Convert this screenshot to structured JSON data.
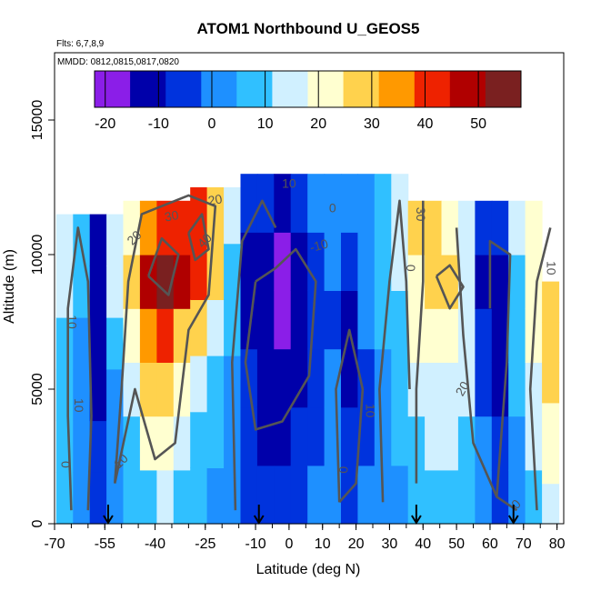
{
  "chart_data": {
    "type": "heatmap",
    "title": "ATOM1 Northbound U_GEOS5",
    "subtitle_flights": "Flts: 6,7,8,9",
    "subtitle_dates": "MMDD: 0812,0815,0817,0820",
    "xlabel": "Latitude (deg N)",
    "ylabel": "Altitude (m)",
    "xlim": [
      -70,
      82
    ],
    "ylim": [
      0,
      17500
    ],
    "x_ticks": [
      -70,
      -55,
      -40,
      -25,
      -10,
      0,
      10,
      20,
      30,
      40,
      50,
      60,
      70,
      80
    ],
    "y_ticks": [
      0,
      5000,
      10000,
      15000
    ],
    "colorbar": {
      "range": [
        -22,
        58
      ],
      "ticks": [
        -20,
        -10,
        0,
        10,
        20,
        30,
        40,
        50
      ],
      "colors": [
        "#8b1ee8",
        "#0000aa",
        "#0033dd",
        "#1e90ff",
        "#30c0ff",
        "#d0f0ff",
        "#ffffd0",
        "#ffd24d",
        "#ff9900",
        "#ee2200",
        "#b00000",
        "#7a2020"
      ]
    },
    "flight_profile_arrows_lat": [
      -54,
      -9,
      38,
      67
    ],
    "wind_field_columns": [
      {
        "lat": -67,
        "top": 11500,
        "u": [
          5,
          8,
          8,
          10,
          12,
          12
        ]
      },
      {
        "lat": -62,
        "top": 11500,
        "u": [
          0,
          2,
          2,
          4,
          6,
          8
        ]
      },
      {
        "lat": -57,
        "top": 11500,
        "u": [
          -6,
          -8,
          -10,
          -12,
          -12,
          -10
        ]
      },
      {
        "lat": -52,
        "top": 11500,
        "u": [
          0,
          2,
          4,
          8,
          12,
          12
        ]
      },
      {
        "lat": -47,
        "top": 12000,
        "u": [
          6,
          10,
          16,
          20,
          25,
          22
        ]
      },
      {
        "lat": -42,
        "top": 12000,
        "u": [
          10,
          18,
          26,
          35,
          45,
          35
        ]
      },
      {
        "lat": -37,
        "top": 12000,
        "u": [
          14,
          22,
          30,
          40,
          52,
          42
        ]
      },
      {
        "lat": -32,
        "top": 12000,
        "u": [
          10,
          16,
          22,
          30,
          45,
          40
        ]
      },
      {
        "lat": -27,
        "top": 12500,
        "u": [
          6,
          10,
          16,
          25,
          40,
          38
        ]
      },
      {
        "lat": -22,
        "top": 12500,
        "u": [
          3,
          6,
          10,
          15,
          25,
          25
        ]
      },
      {
        "lat": -17,
        "top": 12500,
        "u": [
          0,
          2,
          4,
          6,
          10,
          12
        ]
      },
      {
        "lat": -12,
        "top": 13000,
        "u": [
          -3,
          -6,
          -8,
          -10,
          -10,
          -6
        ]
      },
      {
        "lat": -7,
        "top": 13000,
        "u": [
          -6,
          -10,
          -12,
          -14,
          -14,
          -8
        ]
      },
      {
        "lat": -2,
        "top": 13000,
        "u": [
          -6,
          -10,
          -14,
          -16,
          -16,
          -10
        ]
      },
      {
        "lat": 3,
        "top": 13000,
        "u": [
          -4,
          -8,
          -12,
          -14,
          -12,
          -6
        ]
      },
      {
        "lat": 8,
        "top": 13000,
        "u": [
          -2,
          -4,
          -6,
          -8,
          -6,
          0
        ]
      },
      {
        "lat": 13,
        "top": 13000,
        "u": [
          0,
          2,
          0,
          -4,
          -2,
          2
        ]
      },
      {
        "lat": 18,
        "top": 13000,
        "u": [
          -4,
          -8,
          -10,
          -10,
          -6,
          0
        ]
      },
      {
        "lat": 23,
        "top": 13000,
        "u": [
          -2,
          -4,
          -4,
          -2,
          0,
          4
        ]
      },
      {
        "lat": 28,
        "top": 13000,
        "u": [
          2,
          4,
          4,
          6,
          8,
          10
        ]
      },
      {
        "lat": 33,
        "top": 13000,
        "u": [
          4,
          6,
          8,
          10,
          12,
          14
        ]
      },
      {
        "lat": 38,
        "top": 12000,
        "u": [
          6,
          8,
          12,
          18,
          24,
          30
        ]
      },
      {
        "lat": 43,
        "top": 12000,
        "u": [
          8,
          12,
          16,
          22,
          26,
          28
        ]
      },
      {
        "lat": 48,
        "top": 12000,
        "u": [
          8,
          12,
          16,
          20,
          30,
          24
        ]
      },
      {
        "lat": 53,
        "top": 12000,
        "u": [
          6,
          10,
          12,
          14,
          16,
          16
        ]
      },
      {
        "lat": 58,
        "top": 12000,
        "u": [
          0,
          -2,
          -6,
          -8,
          -10,
          -4
        ]
      },
      {
        "lat": 63,
        "top": 12000,
        "u": [
          -4,
          -8,
          -10,
          -12,
          -12,
          -6
        ]
      },
      {
        "lat": 68,
        "top": 12000,
        "u": [
          2,
          4,
          6,
          8,
          10,
          12
        ]
      },
      {
        "lat": 73,
        "top": 12000,
        "u": [
          8,
          12,
          16,
          20,
          22,
          20
        ]
      },
      {
        "lat": 78,
        "top": 9000,
        "u": [
          14,
          18,
          22,
          26,
          30,
          28
        ]
      }
    ],
    "contour_labels": [
      {
        "text": "10",
        "lat": -65,
        "alt": 7500,
        "rot": 90
      },
      {
        "text": "10",
        "lat": -63,
        "alt": 4400,
        "rot": 90
      },
      {
        "text": "0",
        "lat": -67,
        "alt": 2200,
        "rot": 90
      },
      {
        "text": "20",
        "lat": -46,
        "alt": 10600,
        "rot": -45
      },
      {
        "text": "30",
        "lat": -35,
        "alt": 11400,
        "rot": -10
      },
      {
        "text": "20",
        "lat": -22,
        "alt": 12000,
        "rot": -10
      },
      {
        "text": "40",
        "lat": -25,
        "alt": 10500,
        "rot": -45
      },
      {
        "text": "10",
        "lat": -50,
        "alt": 2300,
        "rot": -45
      },
      {
        "text": "10",
        "lat": 0,
        "alt": 12600,
        "rot": 0
      },
      {
        "text": "0",
        "lat": 13,
        "alt": 11700,
        "rot": 0
      },
      {
        "text": "-10",
        "lat": 9,
        "alt": 10300,
        "rot": -15
      },
      {
        "text": "10",
        "lat": 24,
        "alt": 4200,
        "rot": 90
      },
      {
        "text": "0",
        "lat": 16,
        "alt": 2000,
        "rot": 90
      },
      {
        "text": "30",
        "lat": 39,
        "alt": 11500,
        "rot": 90
      },
      {
        "text": "0",
        "lat": 36,
        "alt": 9500,
        "rot": 90
      },
      {
        "text": "20",
        "lat": 52,
        "alt": 5000,
        "rot": -60
      },
      {
        "text": "10",
        "lat": 78,
        "alt": 9500,
        "rot": 90
      },
      {
        "text": "0",
        "lat": 68,
        "alt": 700,
        "rot": -45
      }
    ]
  }
}
